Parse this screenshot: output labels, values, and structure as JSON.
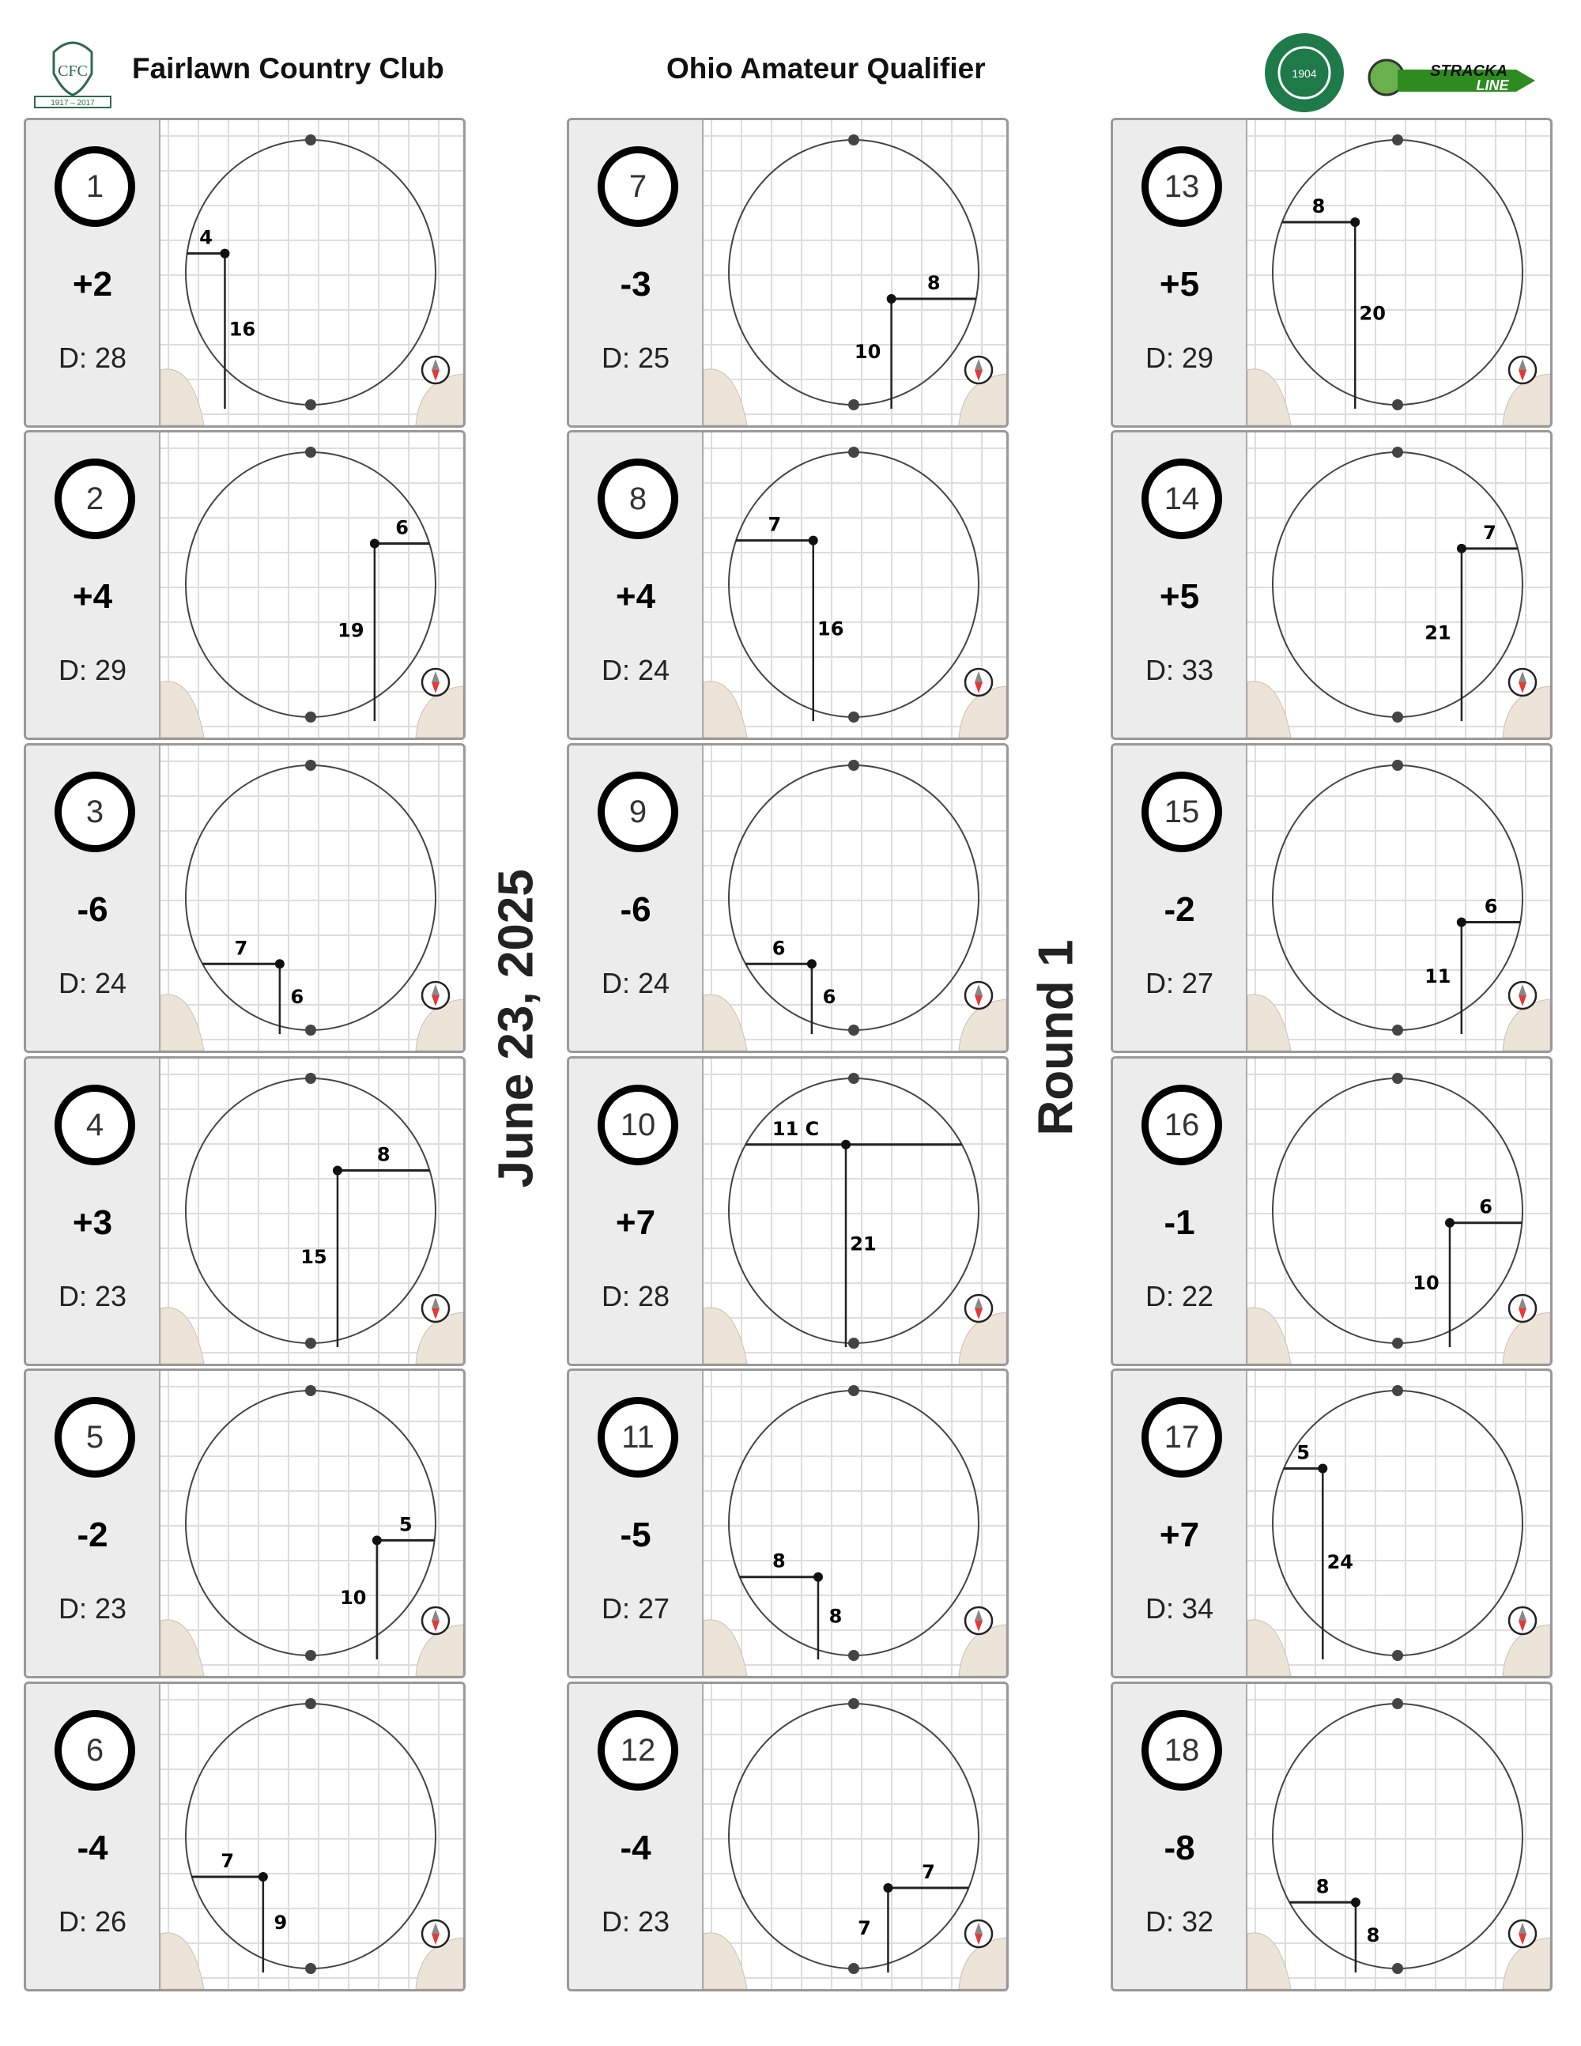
{
  "header": {
    "club": "Fairlawn Country Club",
    "event": "Ohio Amateur Qualifier",
    "club_logo": "Fairlawn crest 1917-2017",
    "oga_logo": "Ohio Golf Association seal",
    "sponsor_logo": "STRACKA LINE"
  },
  "date": "June 23, 2025",
  "round": "Round 1",
  "colors": {
    "sand": "#ede4d9",
    "panel": "#ececec",
    "compass_red": "#e53935"
  },
  "holes": [
    {
      "hole": "1",
      "score": "+2",
      "depth": "D: 28",
      "d": 28,
      "side": "left",
      "side_label": "4",
      "side_yds": 4,
      "front_label": "16",
      "front_yds": 16
    },
    {
      "hole": "2",
      "score": "+4",
      "depth": "D: 29",
      "d": 29,
      "side": "right",
      "side_label": "6",
      "side_yds": 6,
      "front_label": "19",
      "front_yds": 19
    },
    {
      "hole": "3",
      "score": "-6",
      "depth": "D: 24",
      "d": 24,
      "side": "left",
      "side_label": "7",
      "side_yds": 7,
      "front_label": "6",
      "front_yds": 6
    },
    {
      "hole": "4",
      "score": "+3",
      "depth": "D: 23",
      "d": 23,
      "side": "right",
      "side_label": "8",
      "side_yds": 8,
      "front_label": "15",
      "front_yds": 15
    },
    {
      "hole": "5",
      "score": "-2",
      "depth": "D: 23",
      "d": 23,
      "side": "right",
      "side_label": "5",
      "side_yds": 5,
      "front_label": "10",
      "front_yds": 10
    },
    {
      "hole": "6",
      "score": "-4",
      "depth": "D: 26",
      "d": 26,
      "side": "left",
      "side_label": "7",
      "side_yds": 7,
      "front_label": "9",
      "front_yds": 9
    },
    {
      "hole": "7",
      "score": "-3",
      "depth": "D: 25",
      "d": 25,
      "side": "right",
      "side_label": "8",
      "side_yds": 8,
      "front_label": "10",
      "front_yds": 10
    },
    {
      "hole": "8",
      "score": "+4",
      "depth": "D: 24",
      "d": 24,
      "side": "left",
      "side_label": "7",
      "side_yds": 7,
      "front_label": "16",
      "front_yds": 16
    },
    {
      "hole": "9",
      "score": "-6",
      "depth": "D: 24",
      "d": 24,
      "side": "left",
      "side_label": "6",
      "side_yds": 6,
      "front_label": "6",
      "front_yds": 6
    },
    {
      "hole": "10",
      "score": "+7",
      "depth": "D: 28",
      "d": 28,
      "side": "center",
      "side_label": "11 C",
      "side_yds": 11,
      "front_label": "21",
      "front_yds": 21
    },
    {
      "hole": "11",
      "score": "-5",
      "depth": "D: 27",
      "d": 27,
      "side": "left",
      "side_label": "8",
      "side_yds": 8,
      "front_label": "8",
      "front_yds": 8
    },
    {
      "hole": "12",
      "score": "-4",
      "depth": "D: 23",
      "d": 23,
      "side": "right",
      "side_label": "7",
      "side_yds": 7,
      "front_label": "7",
      "front_yds": 7
    },
    {
      "hole": "13",
      "score": "+5",
      "depth": "D: 29",
      "d": 29,
      "side": "left",
      "side_label": "8",
      "side_yds": 8,
      "front_label": "20",
      "front_yds": 20
    },
    {
      "hole": "14",
      "score": "+5",
      "depth": "D: 33",
      "d": 33,
      "side": "right",
      "side_label": "7",
      "side_yds": 7,
      "front_label": "21",
      "front_yds": 21
    },
    {
      "hole": "15",
      "score": "-2",
      "depth": "D: 27",
      "d": 27,
      "side": "right",
      "side_label": "6",
      "side_yds": 6,
      "front_label": "11",
      "front_yds": 11
    },
    {
      "hole": "16",
      "score": "-1",
      "depth": "D: 22",
      "d": 22,
      "side": "right",
      "side_label": "6",
      "side_yds": 6,
      "front_label": "10",
      "front_yds": 10
    },
    {
      "hole": "17",
      "score": "+7",
      "depth": "D: 34",
      "d": 34,
      "side": "left",
      "side_label": "5",
      "side_yds": 5,
      "front_label": "24",
      "front_yds": 24
    },
    {
      "hole": "18",
      "score": "-8",
      "depth": "D: 32",
      "d": 32,
      "side": "left",
      "side_label": "8",
      "side_yds": 8,
      "front_label": "8",
      "front_yds": 8
    }
  ]
}
